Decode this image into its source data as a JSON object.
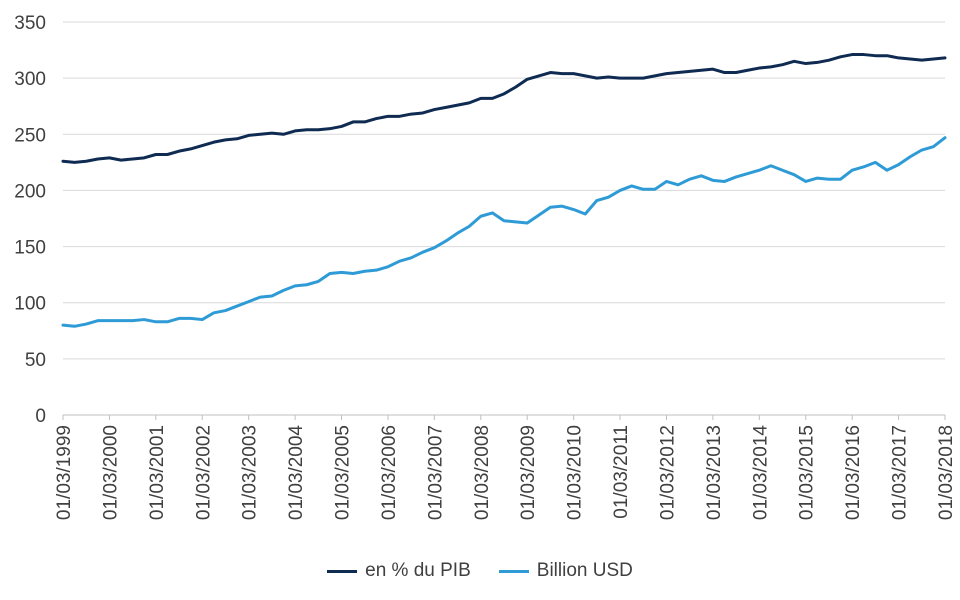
{
  "chart_data": {
    "type": "line",
    "x_tick_labels": [
      "01/03/1999",
      "01/03/2000",
      "01/03/2001",
      "01/03/2002",
      "01/03/2003",
      "01/03/2004",
      "01/03/2005",
      "01/03/2006",
      "01/03/2007",
      "01/03/2008",
      "01/03/2009",
      "01/03/2010",
      "01/03/2011",
      "01/03/2012",
      "01/03/2013",
      "01/03/2014",
      "01/03/2015",
      "01/03/2016",
      "01/03/2017",
      "01/03/2018"
    ],
    "y_ticks": [
      0,
      50,
      100,
      150,
      200,
      250,
      300,
      350
    ],
    "ylim": [
      0,
      350
    ],
    "grid": true,
    "legend_position": "bottom",
    "series": [
      {
        "name": "en % du PIB",
        "color": "#0f2b52",
        "x": [
          "1999-03",
          "1999-06",
          "1999-09",
          "1999-12",
          "2000-03",
          "2000-06",
          "2000-09",
          "2000-12",
          "2001-03",
          "2001-06",
          "2001-09",
          "2001-12",
          "2002-03",
          "2002-06",
          "2002-09",
          "2002-12",
          "2003-03",
          "2003-06",
          "2003-09",
          "2003-12",
          "2004-03",
          "2004-06",
          "2004-09",
          "2004-12",
          "2005-03",
          "2005-06",
          "2005-09",
          "2005-12",
          "2006-03",
          "2006-06",
          "2006-09",
          "2006-12",
          "2007-03",
          "2007-06",
          "2007-09",
          "2007-12",
          "2008-03",
          "2008-06",
          "2008-09",
          "2008-12",
          "2009-03",
          "2009-06",
          "2009-09",
          "2009-12",
          "2010-03",
          "2010-06",
          "2010-09",
          "2010-12",
          "2011-03",
          "2011-06",
          "2011-09",
          "2011-12",
          "2012-03",
          "2012-06",
          "2012-09",
          "2012-12",
          "2013-03",
          "2013-06",
          "2013-09",
          "2013-12",
          "2014-03",
          "2014-06",
          "2014-09",
          "2014-12",
          "2015-03",
          "2015-06",
          "2015-09",
          "2015-12",
          "2016-03",
          "2016-06",
          "2016-09",
          "2016-12",
          "2017-03",
          "2017-06",
          "2017-09",
          "2017-12",
          "2018-03"
        ],
        "values": [
          226,
          225,
          226,
          228,
          229,
          227,
          228,
          229,
          232,
          232,
          235,
          237,
          240,
          243,
          245,
          246,
          249,
          250,
          251,
          250,
          253,
          254,
          254,
          255,
          257,
          261,
          261,
          264,
          266,
          266,
          268,
          269,
          272,
          274,
          276,
          278,
          282,
          282,
          286,
          292,
          299,
          302,
          305,
          304,
          304,
          302,
          300,
          301,
          300,
          300,
          300,
          302,
          304,
          305,
          306,
          307,
          308,
          305,
          305,
          307,
          309,
          310,
          312,
          315,
          313,
          314,
          316,
          319,
          321,
          321,
          320,
          320,
          318,
          317,
          316,
          317,
          318
        ]
      },
      {
        "name": "Billion USD",
        "color": "#2e9bd6",
        "x": [
          "1999-03",
          "1999-06",
          "1999-09",
          "1999-12",
          "2000-03",
          "2000-06",
          "2000-09",
          "2000-12",
          "2001-03",
          "2001-06",
          "2001-09",
          "2001-12",
          "2002-03",
          "2002-06",
          "2002-09",
          "2002-12",
          "2003-03",
          "2003-06",
          "2003-09",
          "2003-12",
          "2004-03",
          "2004-06",
          "2004-09",
          "2004-12",
          "2005-03",
          "2005-06",
          "2005-09",
          "2005-12",
          "2006-03",
          "2006-06",
          "2006-09",
          "2006-12",
          "2007-03",
          "2007-06",
          "2007-09",
          "2007-12",
          "2008-03",
          "2008-06",
          "2008-09",
          "2008-12",
          "2009-03",
          "2009-06",
          "2009-09",
          "2009-12",
          "2010-03",
          "2010-06",
          "2010-09",
          "2010-12",
          "2011-03",
          "2011-06",
          "2011-09",
          "2011-12",
          "2012-03",
          "2012-06",
          "2012-09",
          "2012-12",
          "2013-03",
          "2013-06",
          "2013-09",
          "2013-12",
          "2014-03",
          "2014-06",
          "2014-09",
          "2014-12",
          "2015-03",
          "2015-06",
          "2015-09",
          "2015-12",
          "2016-03",
          "2016-06",
          "2016-09",
          "2016-12",
          "2017-03",
          "2017-06",
          "2017-09",
          "2017-12",
          "2018-03"
        ],
        "values": [
          80,
          79,
          81,
          84,
          84,
          84,
          84,
          85,
          83,
          83,
          86,
          86,
          85,
          91,
          93,
          97,
          101,
          105,
          106,
          111,
          115,
          116,
          119,
          126,
          127,
          126,
          128,
          129,
          132,
          137,
          140,
          145,
          149,
          155,
          162,
          168,
          177,
          180,
          173,
          172,
          171,
          178,
          185,
          186,
          183,
          179,
          191,
          194,
          200,
          204,
          201,
          201,
          208,
          205,
          210,
          213,
          209,
          208,
          212,
          215,
          218,
          222,
          218,
          214,
          208,
          211,
          210,
          210,
          218,
          221,
          225,
          218,
          223,
          230,
          236,
          239,
          247
        ]
      }
    ]
  }
}
